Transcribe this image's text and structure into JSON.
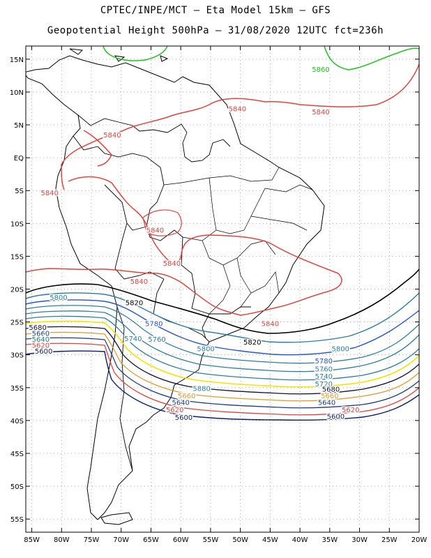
{
  "title": {
    "line1": "CPTEC/INPE/MCT –  Eta Model 15km – GFS",
    "line2": "Geopotential Height 500hPa – 31/08/2020 12UTC fct=236h"
  },
  "map": {
    "lon_range": [
      -86,
      -20
    ],
    "lat_range": [
      -57,
      17
    ],
    "lat_ticks": [
      {
        "v": 15,
        "label": "15N"
      },
      {
        "v": 10,
        "label": "10N"
      },
      {
        "v": 5,
        "label": "5N"
      },
      {
        "v": 0,
        "label": "EQ"
      },
      {
        "v": -5,
        "label": "5S"
      },
      {
        "v": -10,
        "label": "10S"
      },
      {
        "v": -15,
        "label": "15S"
      },
      {
        "v": -20,
        "label": "20S"
      },
      {
        "v": -25,
        "label": "25S"
      },
      {
        "v": -30,
        "label": "30S"
      },
      {
        "v": -35,
        "label": "35S"
      },
      {
        "v": -40,
        "label": "40S"
      },
      {
        "v": -45,
        "label": "45S"
      },
      {
        "v": -50,
        "label": "50S"
      },
      {
        "v": -55,
        "label": "55S"
      }
    ],
    "lon_ticks": [
      {
        "v": -85,
        "label": "85W"
      },
      {
        "v": -80,
        "label": "80W"
      },
      {
        "v": -75,
        "label": "75W"
      },
      {
        "v": -70,
        "label": "70W"
      },
      {
        "v": -65,
        "label": "65W"
      },
      {
        "v": -60,
        "label": "60W"
      },
      {
        "v": -55,
        "label": "55W"
      },
      {
        "v": -50,
        "label": "50W"
      },
      {
        "v": -45,
        "label": "45W"
      },
      {
        "v": -40,
        "label": "40W"
      },
      {
        "v": -35,
        "label": "35W"
      },
      {
        "v": -30,
        "label": "30W"
      },
      {
        "v": -25,
        "label": "25W"
      },
      {
        "v": -20,
        "label": "20W"
      }
    ],
    "contour_labels": [
      {
        "text": "5860",
        "lon": -36.5,
        "lat": 13.5,
        "color": "#1cc41c"
      },
      {
        "text": "5840",
        "lon": -50.5,
        "lat": 7.5,
        "color": "#e8413c"
      },
      {
        "text": "5840",
        "lon": -36.5,
        "lat": 7.0,
        "color": "#e8413c"
      },
      {
        "text": "5840",
        "lon": -71.5,
        "lat": 3.5,
        "color": "#e8413c"
      },
      {
        "text": "5840",
        "lon": -82.0,
        "lat": -5.3,
        "color": "#e8413c"
      },
      {
        "text": "5840",
        "lon": -64.3,
        "lat": -11.0,
        "color": "#e8413c"
      },
      {
        "text": "5840",
        "lon": -61.5,
        "lat": -16.0,
        "color": "#e8413c"
      },
      {
        "text": "5840",
        "lon": -67.0,
        "lat": -18.8,
        "color": "#e8413c"
      },
      {
        "text": "5840",
        "lon": -45.0,
        "lat": -25.2,
        "color": "#e8413c"
      },
      {
        "text": "5820",
        "lon": -67.8,
        "lat": -22.0,
        "color": "#000000"
      },
      {
        "text": "5820",
        "lon": -48.0,
        "lat": -28.0,
        "color": "#000000"
      },
      {
        "text": "5800",
        "lon": -80.5,
        "lat": -21.2,
        "color": "#2a7fa6"
      },
      {
        "text": "5780",
        "lon": -64.5,
        "lat": -25.2,
        "color": "#2153e0"
      },
      {
        "text": "5760",
        "lon": -64.0,
        "lat": -27.6,
        "color": "#2a7fa6"
      },
      {
        "text": "5740",
        "lon": -68.0,
        "lat": -27.5,
        "color": "#2a7fa6"
      },
      {
        "text": "5800",
        "lon": -55.8,
        "lat": -29.0,
        "color": "#2a7fa6"
      },
      {
        "text": "5800",
        "lon": -33.2,
        "lat": -29.0,
        "color": "#2a7fa6"
      },
      {
        "text": "5780",
        "lon": -36.0,
        "lat": -30.9,
        "color": "#2153e0"
      },
      {
        "text": "5760",
        "lon": -36.0,
        "lat": -32.1,
        "color": "#2a7fa6"
      },
      {
        "text": "5740",
        "lon": -36.0,
        "lat": -33.2,
        "color": "#2a7fa6"
      },
      {
        "text": "5720",
        "lon": -36.0,
        "lat": -34.4,
        "color": "#2a7fa6"
      },
      {
        "text": "5680",
        "lon": -84.0,
        "lat": -25.8,
        "color": "#111133"
      },
      {
        "text": "5660",
        "lon": -83.5,
        "lat": -26.7,
        "color": "#1a3d8c"
      },
      {
        "text": "5640",
        "lon": -83.5,
        "lat": -27.6,
        "color": "#1f7a8c"
      },
      {
        "text": "5620",
        "lon": -83.5,
        "lat": -28.5,
        "color": "#e8413c"
      },
      {
        "text": "5600",
        "lon": -83.0,
        "lat": -29.4,
        "color": "#0a1f6e"
      },
      {
        "text": "5880",
        "lon": -56.5,
        "lat": -35.1,
        "color": "#2a7fa6"
      },
      {
        "text": "5660",
        "lon": -59.0,
        "lat": -36.2,
        "color": "#e49b29"
      },
      {
        "text": "5640",
        "lon": -60.0,
        "lat": -37.2,
        "color": "#1a3d8c"
      },
      {
        "text": "5620",
        "lon": -61.0,
        "lat": -38.3,
        "color": "#e8413c"
      },
      {
        "text": "5600",
        "lon": -59.5,
        "lat": -39.5,
        "color": "#0a1f6e"
      },
      {
        "text": "5680",
        "lon": -34.8,
        "lat": -35.2,
        "color": "#111133"
      },
      {
        "text": "5660",
        "lon": -35.0,
        "lat": -36.2,
        "color": "#e49b29"
      },
      {
        "text": "5640",
        "lon": -35.5,
        "lat": -37.2,
        "color": "#1a3d8c"
      },
      {
        "text": "5620",
        "lon": -31.5,
        "lat": -38.3,
        "color": "#e8413c"
      },
      {
        "text": "5600",
        "lon": -34.0,
        "lat": -39.3,
        "color": "#0a1f6e"
      }
    ]
  }
}
